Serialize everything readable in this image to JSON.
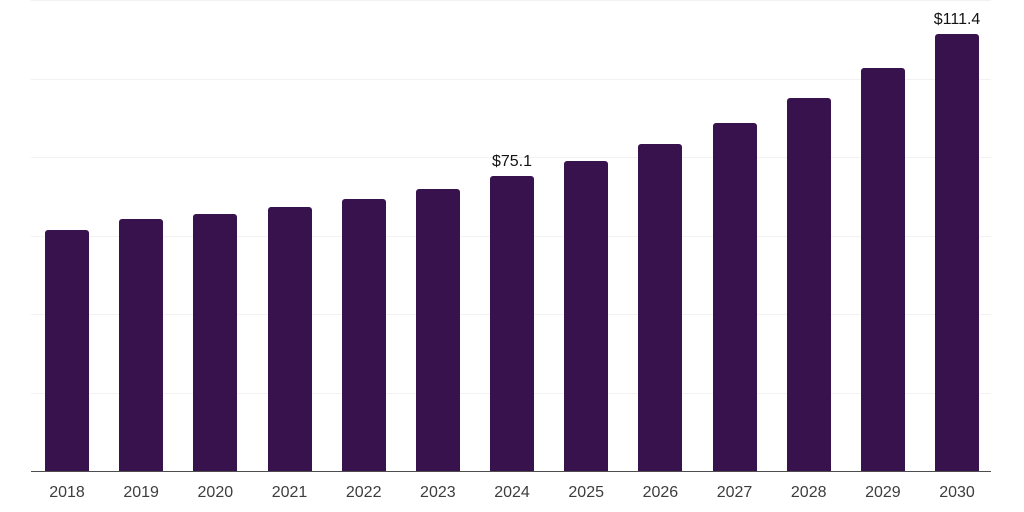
{
  "chart_data": {
    "type": "bar",
    "categories": [
      "2018",
      "2019",
      "2020",
      "2021",
      "2022",
      "2023",
      "2024",
      "2025",
      "2026",
      "2027",
      "2028",
      "2029",
      "2030"
    ],
    "values": [
      61.4,
      64.3,
      65.5,
      67.2,
      69.4,
      71.8,
      75.1,
      79.0,
      83.3,
      88.7,
      95.0,
      102.6,
      111.4
    ],
    "value_labels": {
      "2024": "$75.1",
      "2030": "$111.4"
    },
    "xlabel": "",
    "ylabel": "",
    "ylim": [
      0,
      120
    ],
    "gridline_step": 20,
    "grid": "horizontal",
    "legend_position": "none",
    "colors": {
      "bar": "#38124d",
      "gridline": "#f2f2f2",
      "axis": "#4d4d4d",
      "x_label": "#3d3d3d",
      "value_label": "#141414",
      "background": "#ffffff"
    }
  }
}
